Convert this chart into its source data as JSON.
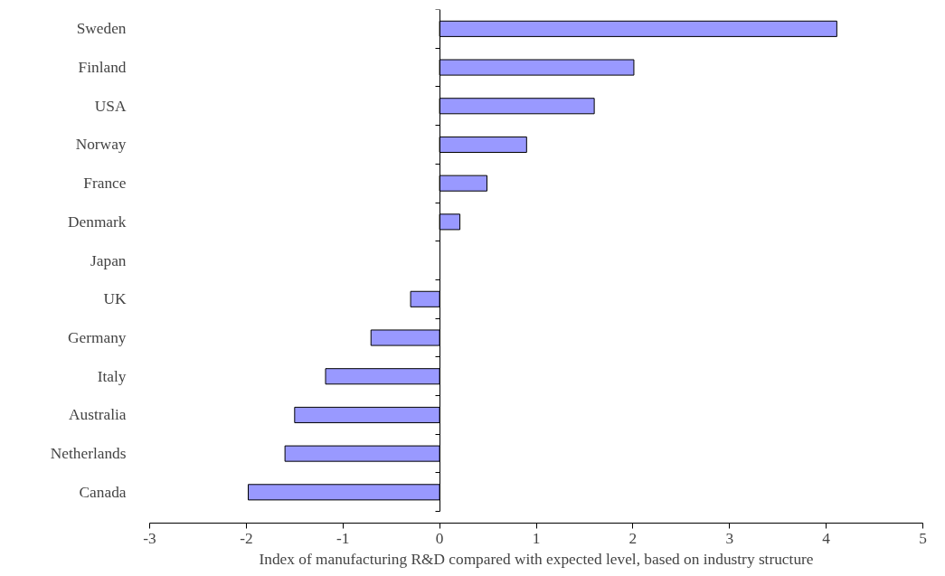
{
  "chart_data": {
    "type": "bar",
    "orientation": "horizontal",
    "xlabel": "Index of manufacturing R&D compared with expected level, based on industry structure",
    "categories": [
      "Sweden",
      "Finland",
      "USA",
      "Norway",
      "France",
      "Denmark",
      "Japan",
      "UK",
      "Germany",
      "Italy",
      "Australia",
      "Netherlands",
      "Canada"
    ],
    "values": [
      4.11,
      2.01,
      1.6,
      0.9,
      0.49,
      0.21,
      0,
      -0.3,
      -0.71,
      -1.18,
      -1.5,
      -1.6,
      -1.98
    ],
    "color": "#9999ff",
    "xlim": [
      -3,
      5
    ],
    "xticks": [
      -3,
      -2,
      -1,
      0,
      1,
      2,
      3,
      4,
      5
    ]
  }
}
